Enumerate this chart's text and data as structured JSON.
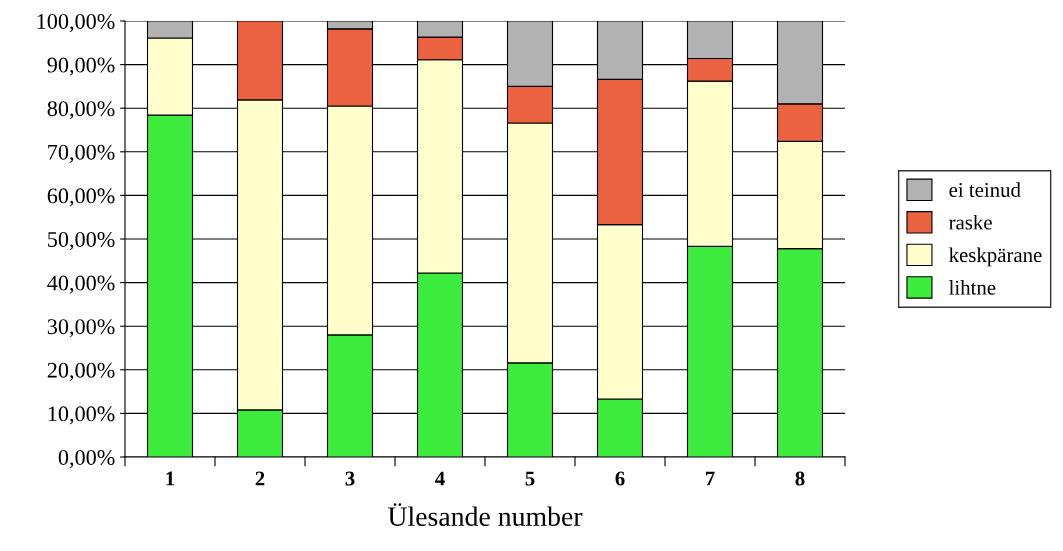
{
  "chart_data": {
    "type": "bar",
    "stacked": true,
    "xlabel": "Ülesande number",
    "categories": [
      "1",
      "2",
      "3",
      "4",
      "5",
      "6",
      "7",
      "8"
    ],
    "series": [
      {
        "name": "lihtne",
        "color": "#3deb3d",
        "values": [
          78.4,
          10.8,
          28.0,
          42.2,
          21.6,
          13.3,
          48.3,
          47.8
        ]
      },
      {
        "name": "keskpärane",
        "color": "#ffffcc",
        "values": [
          17.7,
          71.1,
          52.5,
          48.9,
          55.0,
          40.0,
          37.9,
          24.6
        ]
      },
      {
        "name": "raske",
        "color": "#ea6240",
        "values": [
          0,
          18.1,
          17.7,
          5.2,
          8.4,
          33.3,
          5.2,
          8.6
        ]
      },
      {
        "name": "ei teinud",
        "color": "#b2b2b2",
        "values": [
          3.9,
          0,
          1.8,
          3.7,
          15.0,
          13.4,
          8.6,
          19.0
        ]
      }
    ],
    "ylim": [
      0,
      100
    ],
    "yticks": [
      {
        "value": 0,
        "label": "0,00%"
      },
      {
        "value": 10,
        "label": "10,00%"
      },
      {
        "value": 20,
        "label": "20,00%"
      },
      {
        "value": 30,
        "label": "30,00%"
      },
      {
        "value": 40,
        "label": "40,00%"
      },
      {
        "value": 50,
        "label": "50,00%"
      },
      {
        "value": 60,
        "label": "60,00%"
      },
      {
        "value": 70,
        "label": "70,00%"
      },
      {
        "value": 80,
        "label": "80,00%"
      },
      {
        "value": 90,
        "label": "90,00%"
      },
      {
        "value": 100,
        "label": "100,00%"
      }
    ],
    "grid": "y",
    "legend": "right"
  }
}
